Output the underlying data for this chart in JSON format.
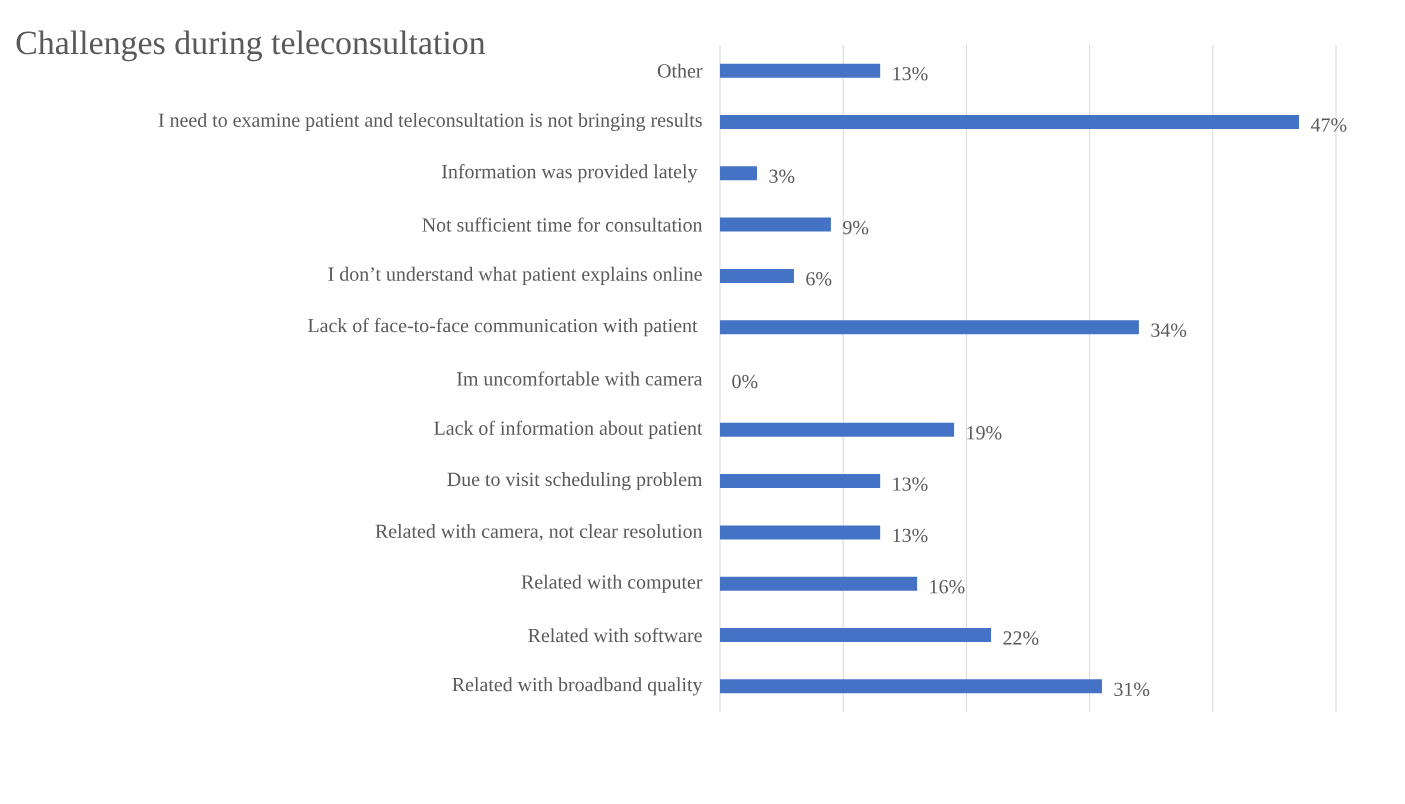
{
  "chart_data": {
    "type": "bar",
    "orientation": "horizontal",
    "title": "Challenges during teleconsultation",
    "categories": [
      "Other",
      "I need to examine patient and teleconsultation is not bringing results",
      "Information was provided lately ",
      "Not sufficient time for consultation",
      "I don’t understand what patient explains online",
      "Lack of face-to-face communication with patient ",
      "Im uncomfortable with camera",
      "Lack of information about patient",
      "Due to visit scheduling problem",
      "Related with camera, not clear resolution",
      "Related with computer",
      "Related with software",
      "Related with broadband quality"
    ],
    "values": [
      13,
      47,
      3,
      9,
      6,
      34,
      0,
      19,
      13,
      13,
      16,
      22,
      31
    ],
    "value_labels": [
      "13%",
      "47%",
      "3%",
      "9%",
      "6%",
      "34%",
      "0%",
      "19%",
      "13%",
      "13%",
      "16%",
      "22%",
      "31%"
    ],
    "color": "#4472c4",
    "xlim": [
      0,
      50
    ],
    "xticks": [
      {
        "value": 0,
        "label": null
      },
      {
        "value": 10,
        "label": null
      },
      {
        "value": 20,
        "label": null
      },
      {
        "value": 30,
        "label": null
      },
      {
        "value": 40,
        "label": null
      },
      {
        "value": 50,
        "label": null
      }
    ],
    "grid": "x",
    "tick_labels": "y"
  }
}
